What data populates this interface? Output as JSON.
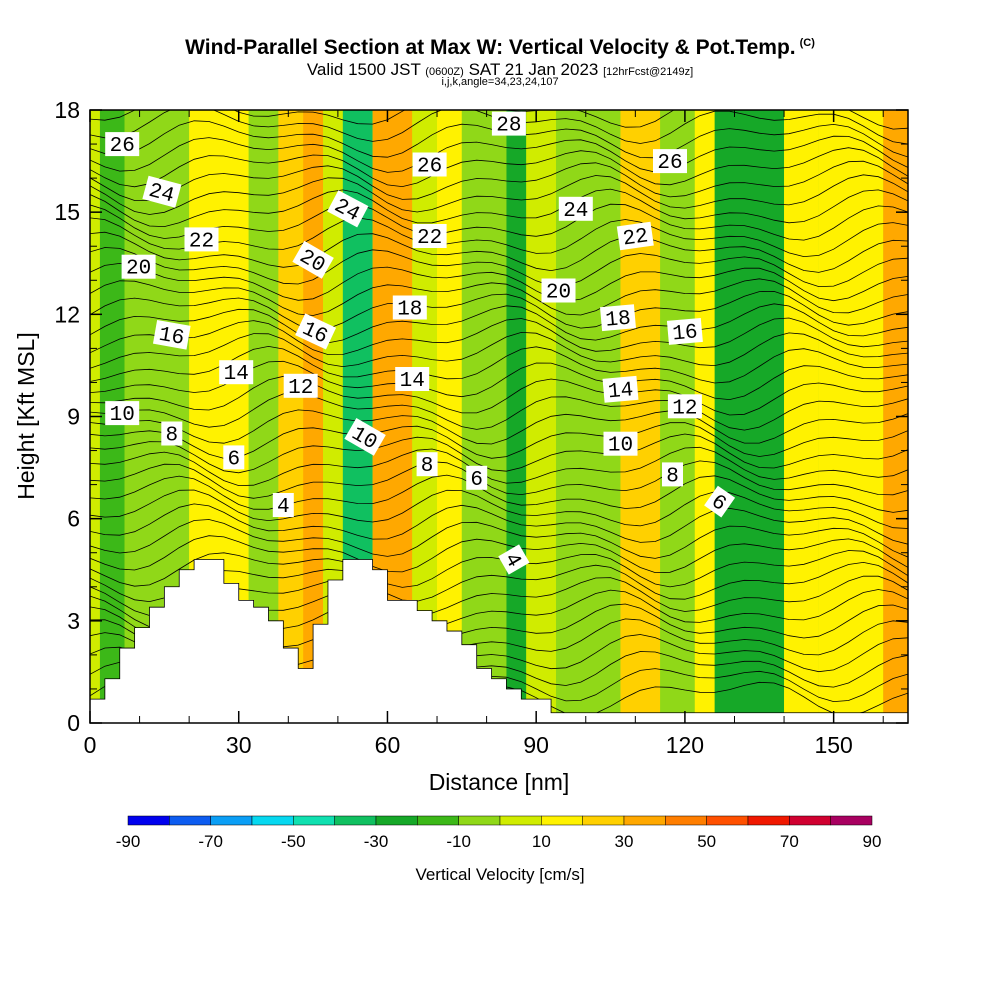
{
  "header": {
    "title": "Wind-Parallel Section at Max W: Vertical Velocity & Pot.Temp.",
    "copyright": "(C)",
    "valid_prefix": "Valid 1500 JST",
    "valid_utc": "(0600Z)",
    "valid_date": "SAT 21 Jan 2023",
    "forecast": "[12hrFcst@2149z]",
    "indices": "i,j,k,angle=34,23,24,107"
  },
  "chart_data": {
    "type": "heatmap",
    "xlabel": "Distance [nm]",
    "ylabel": "Height [Kft MSL]",
    "xlim": [
      0,
      165
    ],
    "ylim": [
      0,
      18
    ],
    "x_ticks": [
      0,
      30,
      60,
      90,
      120,
      150
    ],
    "y_ticks": [
      0,
      3,
      6,
      9,
      12,
      15,
      18
    ],
    "grid": false,
    "colorbar": {
      "label": "Vertical Velocity [cm/s]",
      "tick_labels": [
        "-90",
        "-70",
        "-50",
        "-30",
        "-10",
        "10",
        "30",
        "50",
        "70",
        "90"
      ],
      "levels": [
        -90,
        -80,
        -70,
        -60,
        -50,
        -40,
        -30,
        -20,
        -10,
        0,
        10,
        20,
        30,
        40,
        50,
        60,
        70,
        80,
        90
      ],
      "colors": [
        "#0000ee",
        "#0d5cf0",
        "#0a9ef5",
        "#06d8f0",
        "#10e0b0",
        "#10c060",
        "#16a828",
        "#3cb818",
        "#90d818",
        "#d0ec00",
        "#fff200",
        "#ffd000",
        "#ffa800",
        "#ff7e00",
        "#ff5000",
        "#f01800",
        "#d00030",
        "#a80060",
        "#600090"
      ]
    },
    "velocity_bands": [
      {
        "x": [
          0,
          5
        ],
        "value": 5
      },
      {
        "x": [
          2,
          7
        ],
        "value": -20
      },
      {
        "x": [
          7,
          20
        ],
        "value": -5
      },
      {
        "x": [
          20,
          32
        ],
        "value": 15
      },
      {
        "x": [
          32,
          38
        ],
        "value": -5
      },
      {
        "x": [
          38,
          47
        ],
        "value": 25
      },
      {
        "x": [
          43,
          48
        ],
        "value": 35
      },
      {
        "x": [
          47,
          51
        ],
        "value": 0
      },
      {
        "x": [
          51,
          57
        ],
        "value": -35
      },
      {
        "x": [
          57,
          65
        ],
        "value": 30
      },
      {
        "x": [
          65,
          70
        ],
        "value": 5
      },
      {
        "x": [
          70,
          75
        ],
        "value": 15
      },
      {
        "x": [
          75,
          84
        ],
        "value": -5
      },
      {
        "x": [
          84,
          88
        ],
        "value": -25
      },
      {
        "x": [
          88,
          94
        ],
        "value": 5
      },
      {
        "x": [
          94,
          107
        ],
        "value": -10
      },
      {
        "x": [
          107,
          115
        ],
        "value": 20
      },
      {
        "x": [
          115,
          122
        ],
        "value": -5
      },
      {
        "x": [
          122,
          126
        ],
        "value": 15
      },
      {
        "x": [
          126,
          140
        ],
        "value": -25
      },
      {
        "x": [
          140,
          147
        ],
        "value": 10
      },
      {
        "x": [
          147,
          160
        ],
        "value": 15
      },
      {
        "x": [
          160,
          165
        ],
        "value": 30
      }
    ],
    "terrain": [
      {
        "x": 0,
        "h": 0.7
      },
      {
        "x": 3,
        "h": 1.3
      },
      {
        "x": 6,
        "h": 2.2
      },
      {
        "x": 9,
        "h": 2.8
      },
      {
        "x": 12,
        "h": 3.4
      },
      {
        "x": 15,
        "h": 4.0
      },
      {
        "x": 18,
        "h": 4.5
      },
      {
        "x": 21,
        "h": 4.8
      },
      {
        "x": 24,
        "h": 4.8
      },
      {
        "x": 27,
        "h": 4.1
      },
      {
        "x": 30,
        "h": 3.6
      },
      {
        "x": 33,
        "h": 3.4
      },
      {
        "x": 36,
        "h": 3.0
      },
      {
        "x": 39,
        "h": 2.2
      },
      {
        "x": 42,
        "h": 1.6
      },
      {
        "x": 45,
        "h": 2.9
      },
      {
        "x": 48,
        "h": 4.2
      },
      {
        "x": 51,
        "h": 4.8
      },
      {
        "x": 54,
        "h": 4.8
      },
      {
        "x": 57,
        "h": 4.5
      },
      {
        "x": 60,
        "h": 3.6
      },
      {
        "x": 63,
        "h": 3.6
      },
      {
        "x": 66,
        "h": 3.3
      },
      {
        "x": 69,
        "h": 3.0
      },
      {
        "x": 72,
        "h": 2.7
      },
      {
        "x": 75,
        "h": 2.3
      },
      {
        "x": 78,
        "h": 1.6
      },
      {
        "x": 81,
        "h": 1.3
      },
      {
        "x": 84,
        "h": 1.0
      },
      {
        "x": 87,
        "h": 0.7
      },
      {
        "x": 90,
        "h": 0.7
      },
      {
        "x": 93,
        "h": 0.3
      },
      {
        "x": 165,
        "h": 0.3
      }
    ],
    "contour_labels": [
      {
        "text": "26",
        "x": 6.5,
        "y": 17.0,
        "angle": 0
      },
      {
        "text": "24",
        "x": 14.5,
        "y": 15.6,
        "angle": 15
      },
      {
        "text": "22",
        "x": 22.5,
        "y": 14.2,
        "angle": 0
      },
      {
        "text": "20",
        "x": 9.8,
        "y": 13.4,
        "angle": 0
      },
      {
        "text": "16",
        "x": 16.5,
        "y": 11.4,
        "angle": 10
      },
      {
        "text": "14",
        "x": 29.5,
        "y": 10.3,
        "angle": 0
      },
      {
        "text": "10",
        "x": 6.5,
        "y": 9.1,
        "angle": 0
      },
      {
        "text": "8",
        "x": 16.5,
        "y": 8.5,
        "angle": 0
      },
      {
        "text": "6",
        "x": 29.0,
        "y": 7.8,
        "angle": 0
      },
      {
        "text": "4",
        "x": 39.0,
        "y": 6.4,
        "angle": 0
      },
      {
        "text": "12",
        "x": 42.5,
        "y": 9.9,
        "angle": 0
      },
      {
        "text": "16",
        "x": 45.5,
        "y": 11.5,
        "angle": 25
      },
      {
        "text": "20",
        "x": 45.0,
        "y": 13.6,
        "angle": 30
      },
      {
        "text": "24",
        "x": 52.0,
        "y": 15.1,
        "angle": 28
      },
      {
        "text": "10",
        "x": 55.5,
        "y": 8.4,
        "angle": 30
      },
      {
        "text": "18",
        "x": 64.5,
        "y": 12.2,
        "angle": 0
      },
      {
        "text": "14",
        "x": 65.0,
        "y": 10.1,
        "angle": 0
      },
      {
        "text": "8",
        "x": 68.0,
        "y": 7.6,
        "angle": 0
      },
      {
        "text": "22",
        "x": 68.5,
        "y": 14.3,
        "angle": 0
      },
      {
        "text": "26",
        "x": 68.5,
        "y": 16.4,
        "angle": 0
      },
      {
        "text": "28",
        "x": 84.5,
        "y": 17.6,
        "angle": 0
      },
      {
        "text": "6",
        "x": 78.0,
        "y": 7.2,
        "angle": 0
      },
      {
        "text": "4",
        "x": 85.5,
        "y": 4.8,
        "angle": 60
      },
      {
        "text": "20",
        "x": 94.5,
        "y": 12.7,
        "angle": 0
      },
      {
        "text": "24",
        "x": 98.0,
        "y": 15.1,
        "angle": 0
      },
      {
        "text": "18",
        "x": 106.5,
        "y": 11.9,
        "angle": -5
      },
      {
        "text": "14",
        "x": 107.0,
        "y": 9.8,
        "angle": -5
      },
      {
        "text": "10",
        "x": 107.0,
        "y": 8.2,
        "angle": 0
      },
      {
        "text": "22",
        "x": 110.0,
        "y": 14.3,
        "angle": -8
      },
      {
        "text": "26",
        "x": 117.0,
        "y": 16.5,
        "angle": 0
      },
      {
        "text": "16",
        "x": 120.0,
        "y": 11.5,
        "angle": -5
      },
      {
        "text": "12",
        "x": 120.0,
        "y": 9.3,
        "angle": 0
      },
      {
        "text": "8",
        "x": 117.5,
        "y": 7.3,
        "angle": 0
      },
      {
        "text": "6",
        "x": 127.0,
        "y": 6.5,
        "angle": 35
      }
    ]
  }
}
